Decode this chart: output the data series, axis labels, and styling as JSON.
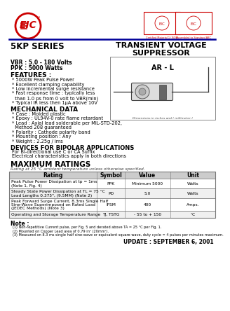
{
  "title_series": "5KP SERIES",
  "title_main": "TRANSIENT VOLTAGE\nSUPPRESSOR",
  "subtitle1": "VBR : 5.0 - 180 Volts",
  "subtitle2": "PPK : 5000 Watts",
  "features_title": "FEATURES :",
  "features": [
    "* 5000W Peak Pulse Power",
    "* Excellent clamping capability",
    "* Low incremental surge resistance",
    "* Fast response time : typically less",
    "  than 1.0 ps from 0 volt to VBR(min)",
    "* Typical IR less then 1μA above 10V"
  ],
  "mech_title": "MECHANICAL DATA",
  "mech": [
    "* Case : Molded plastic",
    "* Epoxy : UL94V-0 rate flame retardant",
    "* Lead : Axial lead solderable per MIL-STD-202,",
    "  Method 208 guaranteed",
    "* Polarity : Cathode polarity band",
    "* Mounting position : Any",
    "* Weight : 2.25g / ims"
  ],
  "bipolar_title": "DEVICES FOR BIPOLAR APPLICATIONS",
  "bipolar": [
    "For Bi-directional use C or CA Suffix",
    "Electrical characteristics apply in both directions"
  ],
  "ratings_title": "MAXIMUM RATINGS",
  "ratings_subtitle": "Rating at 25 °C ambient temperature unless otherwise specified.",
  "table_headers": [
    "Rating",
    "Symbol",
    "Value",
    "Unit"
  ],
  "table_rows": [
    [
      "Peak Pulse Power Dissipation at tp = 1ms\n(Note 1, Fig. 4)",
      "PPK",
      "Minimum 5000",
      "Watts"
    ],
    [
      "Steady State Power Dissipation at TL = 75 °C\nLead Lengths 0.375\", (9.5MM) (Note 2)",
      "PD",
      "5.0",
      "Watts"
    ],
    [
      "Peak Forward Surge Current, 8.3ms Single Half\nSine-Wave Superimposed on Rated Load\n(JEDEC Methods) (Note 3)",
      "IFSM",
      "400",
      "Amps."
    ],
    [
      "Operating and Storage Temperature Range",
      "TJ, TSTG",
      "- 55 to + 150",
      "°C"
    ]
  ],
  "note_title": "Note :",
  "notes": [
    "(1) Non-repetitive Current pulse, per Fig. 5 and derated above TA = 25 °C per Fig. 1.",
    "(2) Mounted on Copper Lead area of 0.79 in² (20mm²).",
    "(3) Measured on 8.3 ms single half sine-wave or equivalent square wave, duty cycle = 4 pulses per minutes maximum."
  ],
  "update": "UPDATE : SEPTEMBER 6, 2001",
  "pkg_label": "AR - L",
  "dim_label": "Dimensions in inches and ( millimeter )",
  "bg_color": "#ffffff",
  "red_color": "#cc0000",
  "blue_color": "#000099",
  "text_color": "#000000",
  "table_line_color": "#777777"
}
